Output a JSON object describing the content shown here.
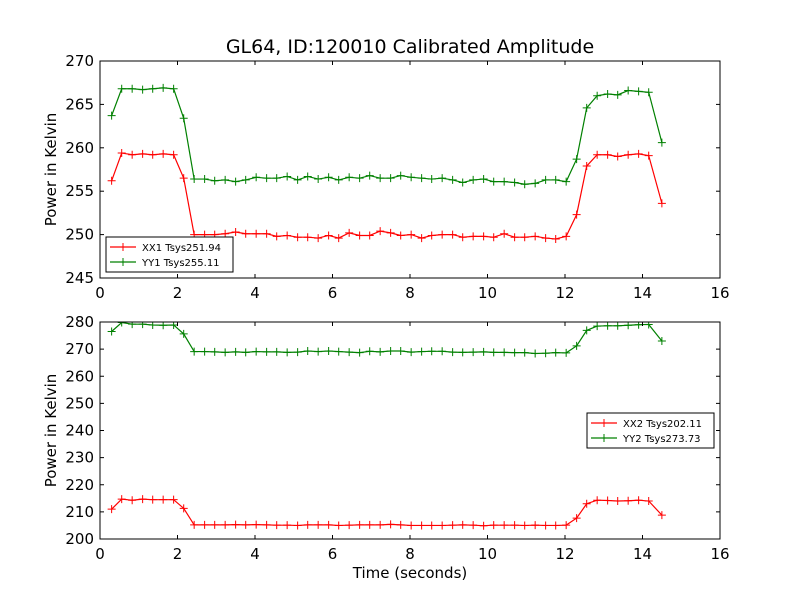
{
  "chart_data": {
    "title": "GL64, ID:120010 Calibrated Amplitude",
    "x": [
      0.3,
      0.56,
      0.83,
      1.1,
      1.36,
      1.63,
      1.9,
      2.16,
      2.43,
      2.7,
      2.96,
      3.23,
      3.5,
      3.76,
      4.03,
      4.3,
      4.56,
      4.83,
      5.1,
      5.36,
      5.63,
      5.9,
      6.16,
      6.43,
      6.7,
      6.96,
      7.23,
      7.5,
      7.76,
      8.03,
      8.3,
      8.56,
      8.83,
      9.1,
      9.36,
      9.63,
      9.9,
      10.16,
      10.43,
      10.7,
      10.96,
      11.23,
      11.5,
      11.76,
      12.03,
      12.3,
      12.56,
      12.83,
      13.1,
      13.36,
      13.63,
      13.9,
      14.16,
      14.5
    ],
    "subplots": [
      {
        "type": "line",
        "xlim": [
          0,
          16
        ],
        "ylim": [
          245,
          270
        ],
        "xticks": [
          "0",
          "2",
          "4",
          "6",
          "8",
          "10",
          "12",
          "14",
          "16"
        ],
        "yticks": [
          "245",
          "250",
          "255",
          "260",
          "265",
          "270"
        ],
        "ylabel": "Power in Kelvin",
        "xlabel": "",
        "legend_position": "lower-left",
        "series": [
          {
            "name": "XX1 Tsys251.94",
            "color": "#ff0000",
            "values": [
              256.2,
              259.4,
              259.2,
              259.3,
              259.2,
              259.3,
              259.2,
              256.5,
              250.0,
              250.0,
              250.0,
              250.1,
              250.3,
              250.1,
              250.1,
              250.1,
              249.8,
              249.9,
              249.7,
              249.7,
              249.6,
              249.9,
              249.6,
              250.2,
              249.9,
              249.9,
              250.4,
              250.2,
              249.9,
              250.0,
              249.6,
              249.9,
              250.0,
              250.0,
              249.7,
              249.8,
              249.8,
              249.7,
              250.1,
              249.7,
              249.7,
              249.8,
              249.6,
              249.5,
              249.8,
              252.3,
              257.9,
              259.2,
              259.2,
              259.0,
              259.2,
              259.3,
              259.1,
              253.6
            ],
            "marker": "+"
          },
          {
            "name": "YY1 Tsys255.11",
            "color": "#008000",
            "values": [
              263.7,
              266.8,
              266.8,
              266.7,
              266.8,
              266.9,
              266.8,
              263.4,
              256.4,
              256.4,
              256.2,
              256.3,
              256.1,
              256.3,
              256.6,
              256.5,
              256.5,
              256.7,
              256.3,
              256.7,
              256.4,
              256.6,
              256.3,
              256.6,
              256.5,
              256.8,
              256.5,
              256.5,
              256.8,
              256.6,
              256.5,
              256.4,
              256.5,
              256.3,
              256.0,
              256.3,
              256.4,
              256.1,
              256.1,
              256.0,
              255.8,
              255.9,
              256.3,
              256.3,
              256.1,
              258.7,
              264.6,
              266.0,
              266.2,
              266.1,
              266.6,
              266.5,
              266.4,
              260.6
            ],
            "marker": "+"
          }
        ]
      },
      {
        "type": "line",
        "xlim": [
          0,
          16
        ],
        "ylim": [
          200,
          280
        ],
        "xticks": [
          "0",
          "2",
          "4",
          "6",
          "8",
          "10",
          "12",
          "14",
          "16"
        ],
        "yticks": [
          "200",
          "210",
          "220",
          "230",
          "240",
          "250",
          "260",
          "270",
          "280"
        ],
        "ylabel": "Power in Kelvin",
        "xlabel": "Time (seconds)",
        "legend_position": "center-right",
        "series": [
          {
            "name": "XX2 Tsys202.11",
            "color": "#ff0000",
            "values": [
              211.0,
              214.7,
              214.3,
              214.7,
              214.5,
              214.5,
              214.5,
              211.3,
              205.2,
              205.2,
              205.2,
              205.2,
              205.3,
              205.2,
              205.3,
              205.2,
              205.1,
              205.1,
              205.0,
              205.2,
              205.2,
              205.2,
              205.0,
              205.1,
              205.2,
              205.2,
              205.2,
              205.4,
              205.2,
              205.0,
              205.0,
              205.0,
              205.0,
              205.1,
              205.2,
              205.1,
              204.9,
              205.1,
              205.1,
              205.1,
              205.0,
              205.1,
              205.0,
              205.0,
              205.1,
              207.7,
              213.0,
              214.3,
              214.2,
              214.0,
              214.1,
              214.3,
              214.0,
              208.8
            ],
            "marker": "+"
          },
          {
            "name": "YY2 Tsys273.73",
            "color": "#008000",
            "values": [
              276.5,
              279.8,
              279.2,
              279.2,
              278.9,
              278.8,
              278.9,
              275.6,
              269.1,
              269.1,
              269.0,
              268.8,
              269.0,
              268.8,
              269.1,
              269.0,
              269.0,
              268.8,
              268.9,
              269.3,
              269.1,
              269.3,
              269.1,
              268.9,
              268.7,
              269.2,
              269.0,
              269.3,
              269.3,
              268.9,
              269.1,
              269.2,
              269.2,
              268.9,
              268.8,
              268.9,
              269.0,
              268.8,
              268.8,
              268.7,
              268.7,
              268.4,
              268.5,
              268.7,
              268.6,
              271.2,
              276.9,
              278.5,
              278.6,
              278.6,
              278.8,
              279.0,
              279.1,
              273.0
            ],
            "marker": "+"
          }
        ]
      }
    ]
  }
}
